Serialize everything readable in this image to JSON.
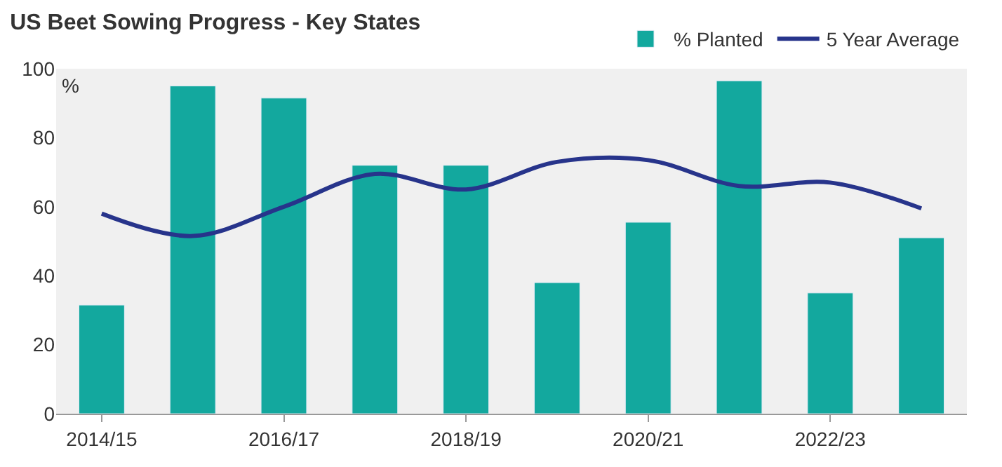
{
  "chart_data": {
    "type": "bar",
    "title": "US Beet Sowing Progress - Key States",
    "ylabel": "%",
    "categories": [
      "2014/15",
      null,
      "2016/17",
      null,
      "2018/19",
      null,
      "2020/21",
      null,
      "2022/23",
      null
    ],
    "series": [
      {
        "name": "% Planted",
        "color": "#13a89e",
        "values": [
          31.5,
          95,
          91.5,
          72,
          72,
          38,
          55.5,
          96.5,
          35,
          51
        ]
      },
      {
        "name": "5 Year Average",
        "type": "line",
        "color": "#27348b",
        "values": [
          58,
          51.5,
          60,
          69.5,
          65,
          73,
          73.5,
          66,
          67,
          59.5
        ]
      }
    ],
    "ylim": [
      0,
      100
    ],
    "yticks": [
      0,
      20,
      40,
      60,
      80,
      100
    ],
    "grid": false,
    "legend": "top right"
  }
}
